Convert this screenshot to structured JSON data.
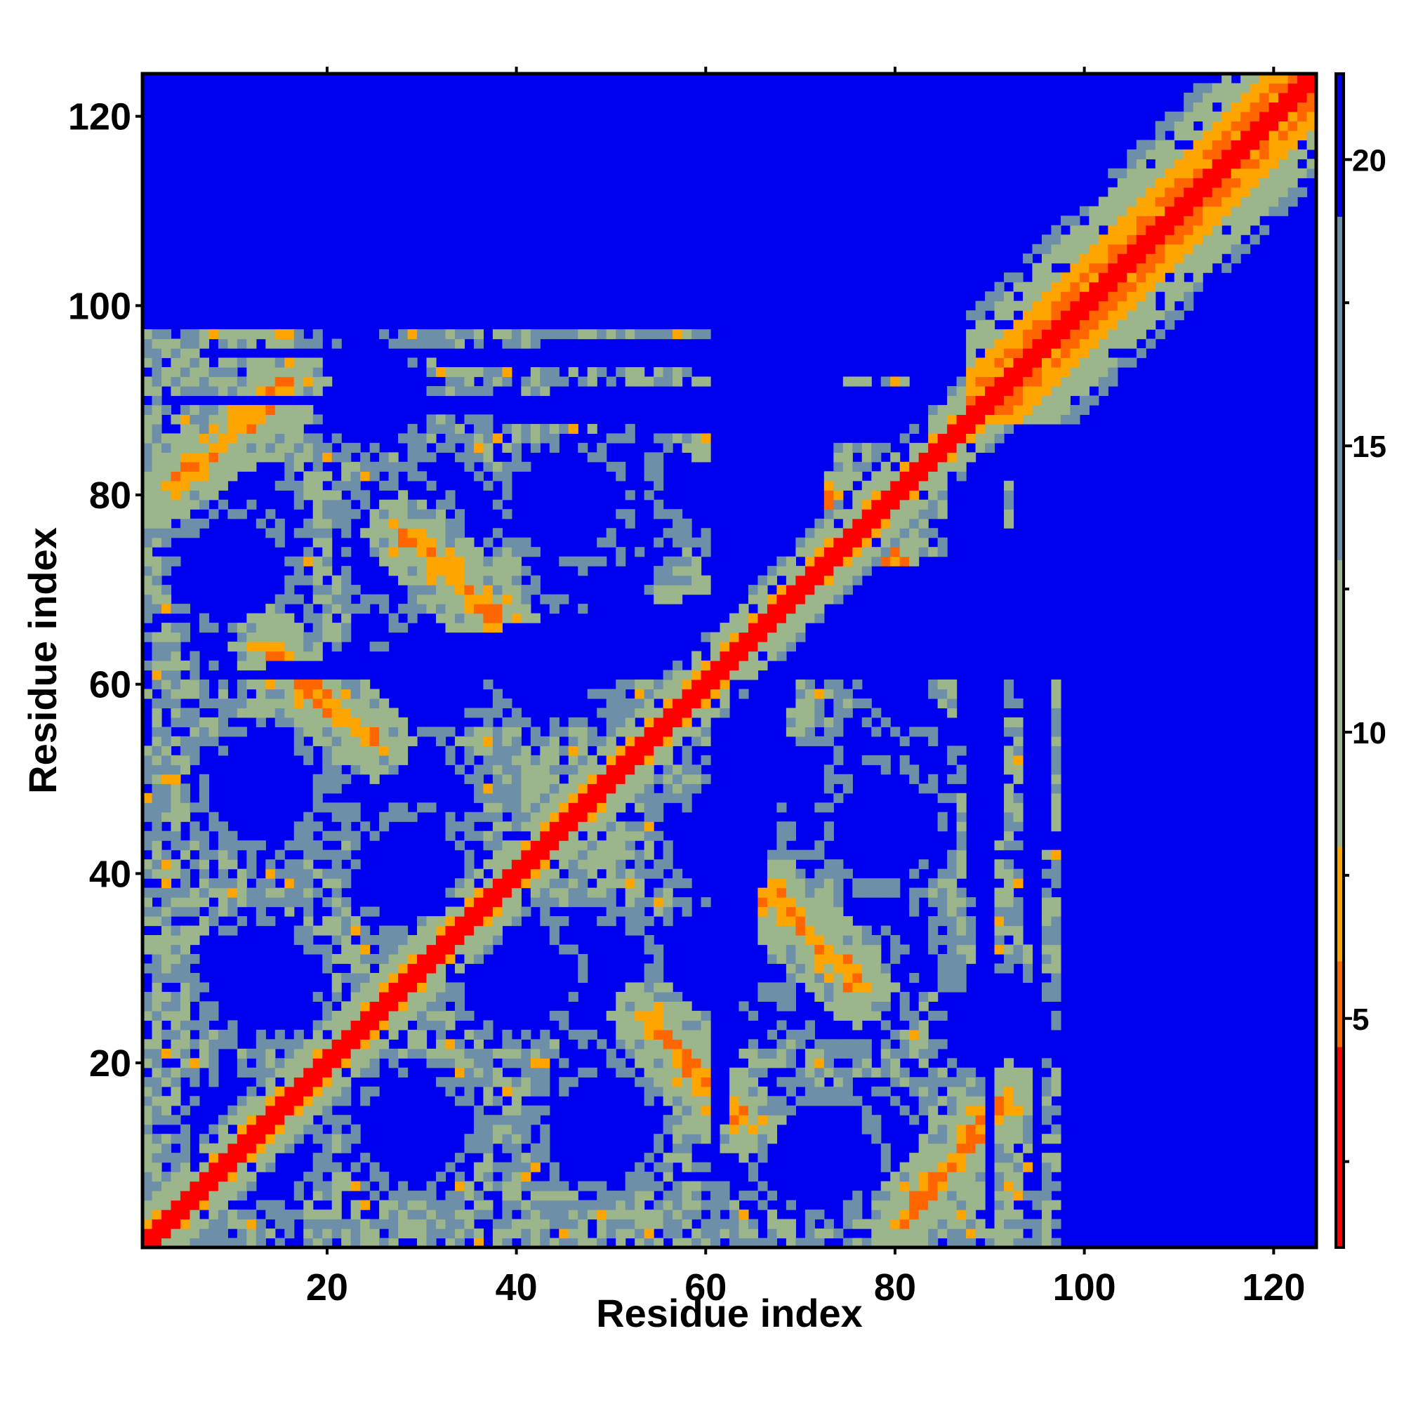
{
  "chart_data": {
    "type": "heatmap",
    "title": "",
    "xlabel": "Residue index",
    "ylabel": "Residue index",
    "n_residues": 124,
    "xlim": [
      1,
      124
    ],
    "ylim": [
      1,
      124
    ],
    "x_ticks": [
      20,
      40,
      60,
      80,
      100,
      120
    ],
    "y_ticks": [
      20,
      40,
      60,
      80,
      100,
      120
    ],
    "colorbar": {
      "range": [
        1,
        21.5
      ],
      "ticks": [
        5,
        10,
        15,
        20
      ],
      "colors": {
        "very_close": "#ff0000",
        "close": "#ff6600",
        "near": "#ffa500",
        "mid": "#9cb58a",
        "far": "#6e8fa8",
        "background": "#0000f0"
      },
      "bands": [
        {
          "from": 1,
          "to": 4.5,
          "color": "#ff0000"
        },
        {
          "from": 4.5,
          "to": 6,
          "color": "#ff6600"
        },
        {
          "from": 6,
          "to": 8,
          "color": "#ffa500"
        },
        {
          "from": 8,
          "to": 13,
          "color": "#9cb58a"
        },
        {
          "from": 13,
          "to": 19,
          "color": "#6e8fa8"
        },
        {
          "from": 19,
          "to": 21.5,
          "color": "#0000f0"
        }
      ]
    },
    "diagonal": {
      "from": 1,
      "to": 124,
      "strong_width": 1.5,
      "halo_width": 4
    },
    "helix_band": {
      "from": 88,
      "to": 124,
      "strong_width": 3,
      "halo_width": 9
    },
    "contact_streaks": [
      {
        "i1": 3,
        "j1": 81,
        "i2": 15,
        "j2": 90
      },
      {
        "i1": 14,
        "j1": 64,
        "i2": 25,
        "j2": 54
      },
      {
        "i1": 28,
        "j1": 76,
        "i2": 38,
        "j2": 67
      },
      {
        "i1": 60,
        "j1": 88,
        "i2": 75,
        "j2": 78
      },
      {
        "i1": 78,
        "j1": 76,
        "i2": 89,
        "j2": 62
      },
      {
        "i1": 54,
        "j1": 25,
        "i2": 62,
        "j2": 15
      },
      {
        "i1": 66,
        "j1": 38,
        "i2": 75,
        "j2": 30
      },
      {
        "i1": 82,
        "j1": 5,
        "i2": 92,
        "j2": 16
      },
      {
        "i1": 44,
        "j1": 48,
        "i2": 48,
        "j2": 44
      },
      {
        "i1": 58,
        "j1": 68,
        "i2": 63,
        "j2": 62
      }
    ],
    "pocket_centers": [
      [
        13,
        11
      ],
      [
        13,
        29
      ],
      [
        13,
        49
      ],
      [
        10,
        72
      ],
      [
        24,
        91
      ],
      [
        28,
        75
      ],
      [
        31,
        61
      ],
      [
        29,
        40
      ],
      [
        45,
        79
      ],
      [
        43,
        62
      ],
      [
        48,
        29
      ],
      [
        48,
        14
      ],
      [
        61,
        82
      ],
      [
        64,
        29
      ],
      [
        66,
        12
      ],
      [
        76,
        66
      ],
      [
        80,
        52
      ],
      [
        78,
        32
      ],
      [
        77,
        11
      ],
      [
        70,
        48
      ]
    ],
    "coverage_limit": [
      [
        1,
        97
      ],
      [
        60,
        98
      ],
      [
        75,
        95
      ],
      [
        85,
        90
      ],
      [
        92,
        85
      ],
      [
        97,
        78
      ],
      [
        100,
        70
      ],
      [
        102,
        60
      ],
      [
        99,
        45
      ],
      [
        98,
        30
      ],
      [
        100,
        15
      ],
      [
        99,
        10
      ],
      [
        95,
        6
      ],
      [
        90,
        2
      ],
      [
        60,
        1
      ]
    ]
  }
}
